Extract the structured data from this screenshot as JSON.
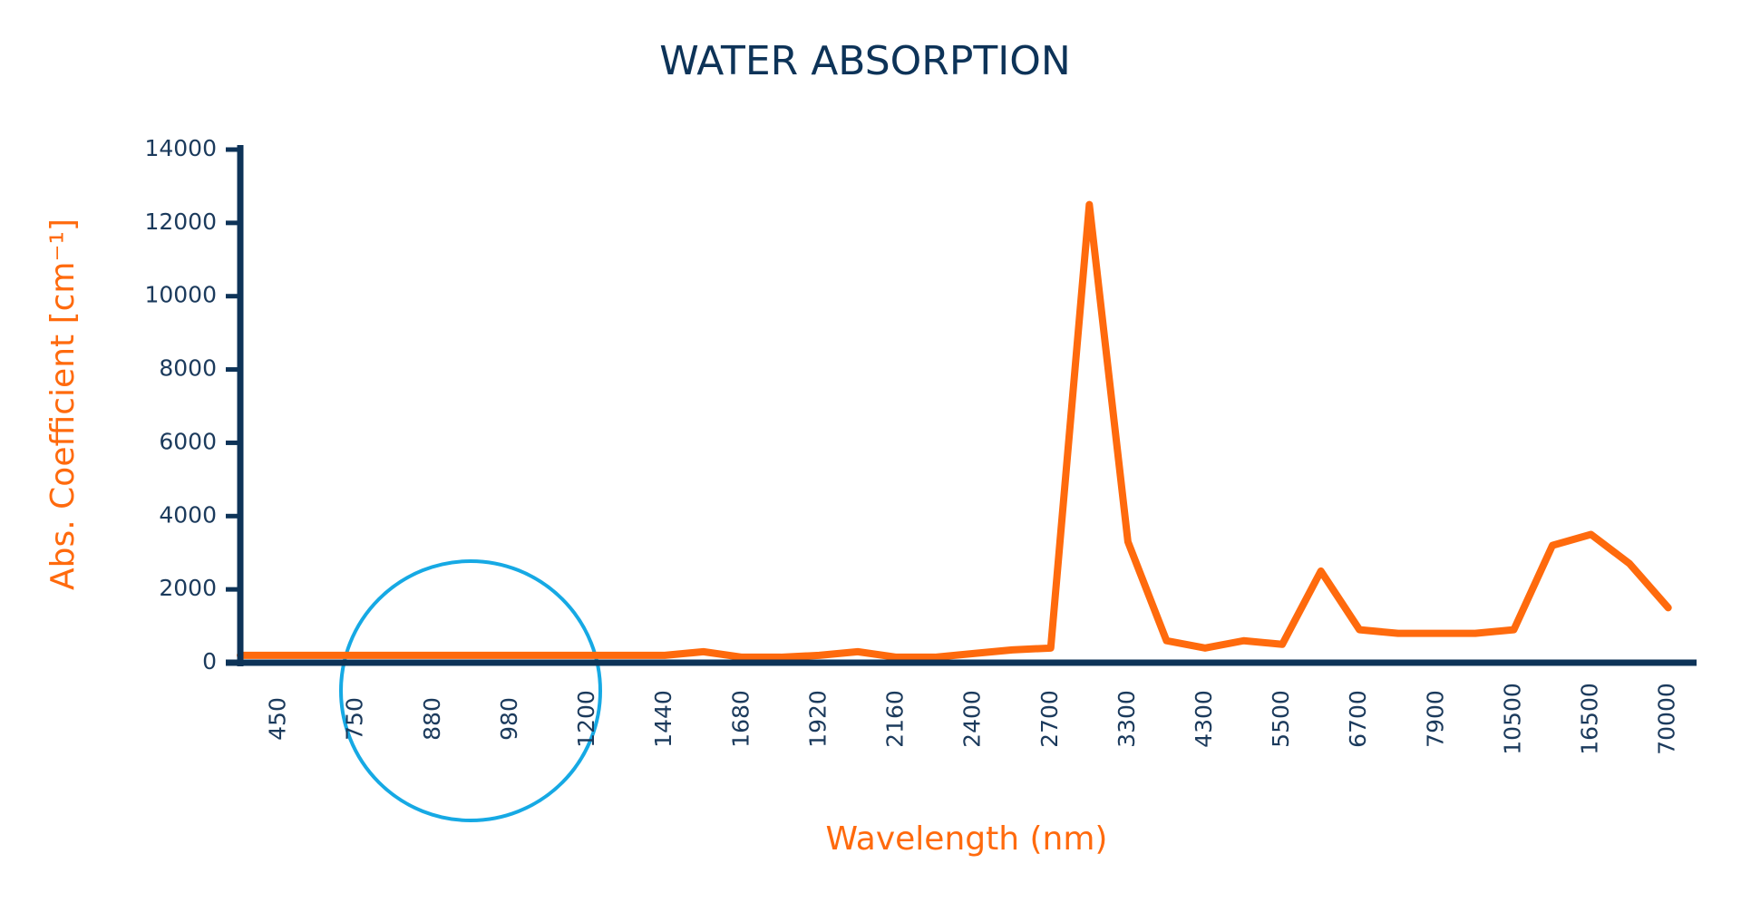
{
  "chart_data": {
    "type": "line",
    "title": "WATER ABSORPTION",
    "x_label": "Wavelength (nm)",
    "y_label": "Abs. Coefficient [cm⁻¹]",
    "categories": [
      null,
      "450",
      null,
      "750",
      null,
      "880",
      null,
      "980",
      null,
      "1200",
      null,
      "1440",
      null,
      "1680",
      null,
      "1920",
      null,
      "2160",
      null,
      "2400",
      null,
      "2700",
      null,
      "3300",
      null,
      "4300",
      null,
      "5500",
      null,
      "6700",
      null,
      "7900",
      null,
      "10500",
      null,
      "16500",
      null,
      "70000"
    ],
    "series": [
      {
        "color": "#ff6a0d",
        "values": [
          200,
          200,
          200,
          200,
          200,
          200,
          200,
          200,
          200,
          200,
          200,
          200,
          300,
          150,
          150,
          200,
          300,
          150,
          150,
          250,
          350,
          400,
          12500,
          3300,
          600,
          400,
          600,
          500,
          2500,
          900,
          800,
          800,
          800,
          900,
          3200,
          3500,
          2700,
          1500
        ]
      }
    ],
    "ylim": [
      0,
      14000
    ],
    "yticks": [
      0,
      2000,
      4000,
      6000,
      8000,
      10000,
      12000,
      14000
    ],
    "axis_color": "#0d3358",
    "label_color": "#ff6a0d"
  }
}
